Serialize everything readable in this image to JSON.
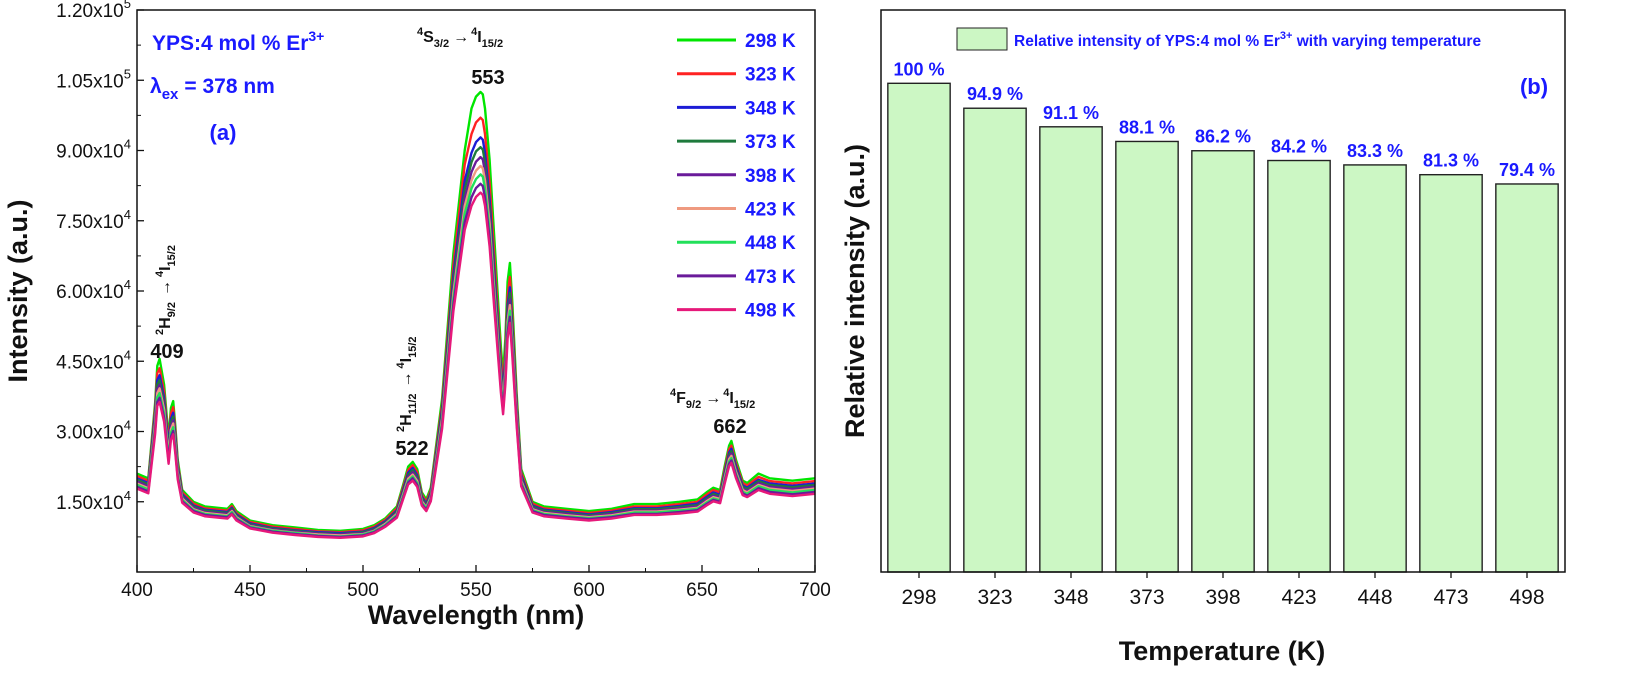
{
  "colors": {
    "bar_fill": "#ccf7c4",
    "bar_stroke": "#222222",
    "label_blue": "#1a1aff"
  },
  "chart_data": [
    {
      "type": "line",
      "panel": "(a)",
      "xlabel": "Wavelength (nm)",
      "ylabel": "Intensity (a.u.)",
      "xlim": [
        400,
        700
      ],
      "ylim": [
        0,
        120000
      ],
      "x_ticks": [
        "400",
        "450",
        "500",
        "550",
        "600",
        "650",
        "700"
      ],
      "y_ticks": [
        "1.50x10",
        "3.00x10",
        "4.50x10",
        "6.00x10",
        "7.50x10",
        "9.00x10",
        "1.05x10",
        "1.20x10"
      ],
      "y_tick_exponents": [
        "4",
        "4",
        "4",
        "4",
        "4",
        "4",
        "5",
        "5"
      ],
      "sample_title": "YPS:4 mol % Er",
      "sample_sup": "3+",
      "excitation": "= 378 nm",
      "excitation_symbol": "λ",
      "excitation_sub": "ex",
      "annotations": {
        "p409": "409",
        "p522": "522",
        "p553": "553",
        "p662": "662"
      },
      "x": [
        400,
        405,
        408,
        409,
        410,
        412,
        414,
        415,
        416,
        417,
        418,
        420,
        425,
        430,
        440,
        442,
        444,
        450,
        460,
        470,
        480,
        490,
        500,
        505,
        510,
        515,
        518,
        520,
        522,
        524,
        526,
        528,
        530,
        535,
        540,
        545,
        548,
        550,
        552,
        553,
        554,
        556,
        558,
        560,
        561,
        562,
        563,
        564,
        565,
        566,
        568,
        570,
        575,
        580,
        590,
        600,
        610,
        620,
        630,
        640,
        648,
        652,
        655,
        658,
        660,
        662,
        663,
        665,
        668,
        670,
        675,
        680,
        690,
        700
      ],
      "series": [
        {
          "name": "298 K",
          "color": "#00e600",
          "values": [
            21000,
            20000,
            36000,
            44000,
            45500,
            40000,
            28500,
            35000,
            36500,
            31000,
            24000,
            17500,
            15000,
            14000,
            13500,
            14500,
            13000,
            11000,
            10000,
            9500,
            9000,
            8800,
            9200,
            10000,
            11500,
            14000,
            19000,
            22500,
            23500,
            22000,
            17000,
            15500,
            18000,
            37000,
            68000,
            90000,
            99000,
            101500,
            102500,
            102000,
            99000,
            88000,
            72000,
            56000,
            48000,
            42000,
            50000,
            62000,
            66000,
            58000,
            38000,
            22000,
            15000,
            14000,
            13500,
            13000,
            13500,
            14500,
            14500,
            15000,
            15500,
            17000,
            18000,
            17500,
            22500,
            27000,
            28000,
            24000,
            19500,
            19000,
            21000,
            20000,
            19500,
            20000
          ]
        },
        {
          "name": "323 K",
          "color": "#ff2222",
          "values": [
            20500,
            19500,
            35000,
            42500,
            43500,
            38500,
            27500,
            33800,
            35200,
            30000,
            23300,
            17000,
            14600,
            13600,
            13100,
            14100,
            12600,
            10700,
            9700,
            9200,
            8700,
            8500,
            8900,
            9700,
            11200,
            13600,
            18500,
            21800,
            22800,
            21300,
            16500,
            15000,
            17500,
            35800,
            65500,
            87000,
            93500,
            96000,
            97000,
            96500,
            93500,
            83000,
            68000,
            53000,
            45500,
            40000,
            47500,
            59000,
            63000,
            55000,
            36500,
            21300,
            14600,
            13600,
            13100,
            12600,
            13100,
            14000,
            14000,
            14500,
            15000,
            16500,
            17500,
            17000,
            21800,
            26200,
            27000,
            23300,
            19000,
            18500,
            20300,
            19400,
            18900,
            19400
          ]
        },
        {
          "name": "348 K",
          "color": "#1c1cd6",
          "values": [
            20000,
            19000,
            34000,
            41000,
            42000,
            37200,
            26600,
            32700,
            34000,
            29000,
            22700,
            16600,
            14200,
            13300,
            12800,
            13700,
            12300,
            10400,
            9400,
            8900,
            8500,
            8300,
            8600,
            9400,
            10900,
            13200,
            18000,
            21200,
            22200,
            20700,
            16100,
            14600,
            17000,
            34800,
            63500,
            83500,
            89500,
            91800,
            92800,
            92300,
            89500,
            79500,
            65000,
            51000,
            43800,
            38500,
            45700,
            57000,
            60800,
            53000,
            35400,
            20700,
            14200,
            13300,
            12800,
            12300,
            12800,
            13600,
            13600,
            14100,
            14600,
            16000,
            17000,
            16500,
            21200,
            25500,
            26300,
            22700,
            18500,
            18000,
            19700,
            18900,
            18400,
            18900
          ]
        },
        {
          "name": "373 K",
          "color": "#1e7a3c",
          "values": [
            19700,
            18700,
            33200,
            40000,
            41000,
            36300,
            26000,
            31900,
            33200,
            28300,
            22200,
            16300,
            14000,
            13100,
            12600,
            13500,
            12100,
            10200,
            9300,
            8800,
            8300,
            8100,
            8500,
            9200,
            10700,
            13000,
            17700,
            20800,
            21800,
            20300,
            15800,
            14400,
            16700,
            34200,
            62300,
            81700,
            87500,
            89800,
            90700,
            90200,
            87500,
            77700,
            63600,
            49900,
            42900,
            37700,
            44800,
            55900,
            59600,
            52000,
            34700,
            20300,
            14000,
            13100,
            12600,
            12100,
            12600,
            13400,
            13400,
            13900,
            14300,
            15700,
            16700,
            16200,
            20800,
            25100,
            25800,
            22300,
            18200,
            17700,
            19400,
            18600,
            18100,
            18600
          ]
        },
        {
          "name": "398 K",
          "color": "#6a1b9a",
          "values": [
            19300,
            18300,
            32400,
            39000,
            40000,
            35400,
            25400,
            31100,
            32400,
            27600,
            21700,
            16000,
            13700,
            12800,
            12400,
            13200,
            11900,
            10000,
            9100,
            8600,
            8200,
            8000,
            8300,
            9000,
            10500,
            12700,
            17300,
            20300,
            21300,
            19800,
            15400,
            14100,
            16300,
            33400,
            60800,
            79800,
            85400,
            87600,
            88600,
            88100,
            85400,
            75900,
            62100,
            48700,
            41900,
            36800,
            43800,
            54600,
            58200,
            50800,
            33900,
            19900,
            13700,
            12800,
            12400,
            11900,
            12400,
            13100,
            13100,
            13600,
            14000,
            15400,
            16300,
            15900,
            20400,
            24600,
            25300,
            21900,
            17800,
            17300,
            19000,
            18200,
            17700,
            18200
          ]
        },
        {
          "name": "423 K",
          "color": "#ef9a80",
          "values": [
            18900,
            17900,
            31700,
            38200,
            39200,
            34700,
            24900,
            30400,
            31700,
            27000,
            21300,
            15700,
            13400,
            12600,
            12100,
            13000,
            11700,
            9800,
            8900,
            8400,
            8000,
            7800,
            8100,
            8800,
            10300,
            12400,
            16900,
            19900,
            20800,
            19400,
            15100,
            13800,
            16000,
            32700,
            59500,
            78100,
            83600,
            85700,
            86700,
            86200,
            83600,
            74300,
            60800,
            47700,
            41000,
            36000,
            42900,
            53400,
            57000,
            49700,
            33200,
            19500,
            13400,
            12600,
            12100,
            11700,
            12100,
            12900,
            12900,
            13300,
            13700,
            15100,
            16000,
            15600,
            20000,
            24100,
            24800,
            21400,
            17500,
            17000,
            18600,
            17800,
            17300,
            17800
          ]
        },
        {
          "name": "448 K",
          "color": "#22e05a",
          "values": [
            18600,
            17600,
            30900,
            37300,
            38200,
            33800,
            24300,
            29700,
            30900,
            26400,
            20800,
            15400,
            13200,
            12400,
            11900,
            12800,
            11500,
            9700,
            8800,
            8300,
            7800,
            7600,
            8000,
            8700,
            10100,
            12200,
            16600,
            19500,
            20400,
            19000,
            14800,
            13600,
            15700,
            32000,
            58300,
            76500,
            81900,
            83900,
            84900,
            84400,
            81900,
            72800,
            59500,
            46700,
            40100,
            35300,
            42000,
            52300,
            55800,
            48700,
            32500,
            19100,
            13200,
            12400,
            11900,
            11500,
            11900,
            12700,
            12700,
            13100,
            13500,
            14800,
            15700,
            15300,
            19600,
            23600,
            24300,
            21000,
            17100,
            16700,
            18300,
            17500,
            17000,
            17500
          ]
        },
        {
          "name": "473 K",
          "color": "#6a1b9a",
          "values": [
            18200,
            17200,
            30100,
            36300,
            37200,
            32900,
            23700,
            28900,
            30100,
            25700,
            20300,
            15100,
            13000,
            12200,
            11700,
            12500,
            11300,
            9500,
            8600,
            8100,
            7700,
            7500,
            7800,
            8500,
            9900,
            11900,
            16200,
            19100,
            20000,
            18600,
            14500,
            13300,
            15400,
            31300,
            57000,
            74700,
            80000,
            82000,
            82900,
            82400,
            80000,
            71100,
            58100,
            45600,
            39200,
            34500,
            41000,
            51100,
            54500,
            47600,
            31800,
            18700,
            13000,
            12200,
            11700,
            11300,
            11700,
            12400,
            12400,
            12800,
            13200,
            14500,
            15400,
            15000,
            19200,
            23100,
            23800,
            20600,
            16800,
            16300,
            17900,
            17100,
            16600,
            17100
          ]
        },
        {
          "name": "498 K",
          "color": "#e6197a",
          "values": [
            17800,
            16800,
            29400,
            35500,
            36300,
            32100,
            23100,
            28200,
            29400,
            25100,
            19800,
            14800,
            12700,
            11900,
            11400,
            12300,
            11000,
            9300,
            8400,
            7900,
            7500,
            7300,
            7600,
            8300,
            9700,
            11600,
            15900,
            18700,
            19500,
            18200,
            14200,
            13000,
            15100,
            30600,
            55700,
            73000,
            78200,
            80100,
            81000,
            80500,
            78200,
            69500,
            56800,
            44600,
            38300,
            33700,
            40100,
            49900,
            53200,
            46500,
            31100,
            18300,
            12700,
            11900,
            11400,
            11000,
            11400,
            12200,
            12200,
            12500,
            12900,
            14200,
            15100,
            14700,
            18800,
            22600,
            23300,
            20100,
            16400,
            16000,
            17500,
            16700,
            16200,
            16700
          ]
        }
      ]
    },
    {
      "type": "bar",
      "panel": "(b)",
      "xlabel": "Temperature (K)",
      "ylabel": "Relative intensity (a.u.)",
      "categories": [
        "298",
        "323",
        "348",
        "373",
        "398",
        "423",
        "448",
        "473",
        "498"
      ],
      "values": [
        100,
        94.9,
        91.1,
        88.1,
        86.2,
        84.2,
        83.3,
        81.3,
        79.4
      ],
      "value_labels": [
        "100 %",
        "94.9 %",
        "91.1 %",
        "88.1 %",
        "86.2 %",
        "84.2 %",
        "83.3 %",
        "81.3 %",
        "79.4 %"
      ],
      "legend": "Relative intensity of YPS:4 mol % Er",
      "legend_sup": "3+",
      "legend_tail": " with varying temperature",
      "legend_position": "top",
      "ylim": [
        0,
        115
      ]
    }
  ]
}
